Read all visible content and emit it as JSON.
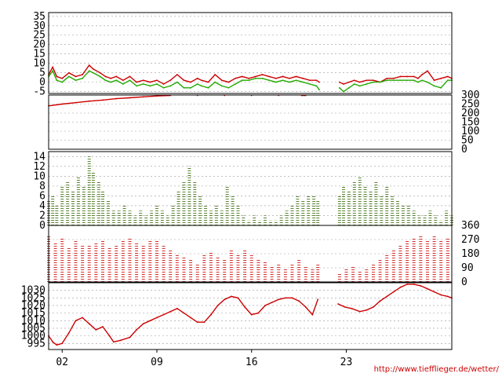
{
  "credit": "http://www.tiefflieger.de/wetter/",
  "colors": {
    "red": "#cc0000",
    "green": "#22aa00",
    "darkgreen": "#336600",
    "grid": "#999999",
    "axis": "#000000"
  },
  "chart_data": [
    {
      "type": "line",
      "ylim": [
        -6,
        37
      ],
      "yticks": [
        35,
        30,
        25,
        20,
        15,
        10,
        5,
        0,
        -5
      ],
      "xlim": [
        1,
        30.8
      ],
      "series": [
        {
          "color": "#cc0000",
          "x": [
            1,
            1.3,
            1.6,
            2,
            2.5,
            3,
            3.5,
            4,
            4.3,
            4.8,
            5.2,
            5.6,
            6,
            6.5,
            7,
            7.5,
            8,
            8.5,
            9,
            9.5,
            10,
            10.5,
            11,
            11.5,
            12,
            12.3,
            12.8,
            13.3,
            13.8,
            14.3,
            14.8,
            15.3,
            15.8,
            16.3,
            16.8,
            17.3,
            17.8,
            18.3,
            18.8,
            19.3,
            19.8,
            20.3,
            20.8,
            21,
            22.5,
            22.8,
            23.2,
            23.6,
            24,
            24.5,
            25,
            25.5,
            26,
            26.5,
            27,
            27.5,
            28,
            28.3,
            28.6,
            29,
            29.5,
            30,
            30.5,
            30.8
          ],
          "y": [
            4,
            8,
            3,
            2,
            5,
            3,
            4,
            9,
            7,
            5,
            3,
            2,
            3,
            1,
            3,
            0,
            1,
            0,
            1,
            -1,
            1,
            4,
            1,
            0,
            2,
            1,
            0,
            4,
            1,
            0,
            2,
            3,
            2,
            3,
            4,
            3,
            2,
            3,
            2,
            3,
            2,
            1,
            1,
            0,
            0,
            -1,
            0,
            1,
            0,
            1,
            1,
            0,
            2,
            2,
            3,
            3,
            3,
            2,
            4,
            6,
            1,
            2,
            3,
            2
          ]
        },
        {
          "color": "#22aa00",
          "x": [
            1,
            1.3,
            1.6,
            2,
            2.5,
            3,
            3.5,
            4,
            4.3,
            4.8,
            5.2,
            5.6,
            6,
            6.5,
            7,
            7.5,
            8,
            8.5,
            9,
            9.5,
            10,
            10.5,
            11,
            11.5,
            12,
            12.3,
            12.8,
            13.3,
            13.8,
            14.3,
            14.8,
            15.3,
            15.8,
            16.3,
            16.8,
            17.3,
            17.8,
            18.3,
            18.8,
            19.3,
            19.8,
            20.3,
            20.8,
            21,
            22.5,
            22.8,
            23.2,
            23.6,
            24,
            24.5,
            25,
            25.5,
            26,
            26.5,
            27,
            27.5,
            28,
            28.3,
            28.6,
            29,
            29.5,
            30,
            30.5,
            30.8
          ],
          "y": [
            3,
            6,
            1,
            0,
            3,
            1,
            2,
            6,
            5,
            3,
            1,
            0,
            1,
            -1,
            1,
            -2,
            -1,
            -2,
            -1,
            -3,
            -2,
            0,
            -3,
            -3,
            -1,
            -2,
            -3,
            0,
            -2,
            -3,
            -1,
            1,
            1,
            2,
            2,
            1,
            0,
            1,
            0,
            1,
            0,
            -1,
            -2,
            -4,
            -3,
            -5,
            -3,
            -1,
            -2,
            -1,
            0,
            0,
            1,
            1,
            1,
            1,
            1,
            0,
            1,
            0,
            -2,
            -3,
            1,
            1
          ]
        }
      ]
    },
    {
      "type": "line",
      "ylim": [
        0,
        300
      ],
      "yticks": [
        300,
        250,
        200,
        150,
        100,
        50,
        0
      ],
      "xlim": [
        1,
        30.8
      ],
      "series": [
        {
          "color": "#cc0000",
          "x": [
            1,
            2,
            3,
            4,
            5,
            6,
            7,
            8,
            9,
            10,
            12,
            14,
            16,
            18,
            19.7,
            20
          ],
          "y": [
            240,
            250,
            258,
            266,
            272,
            280,
            285,
            290,
            295,
            298,
            298,
            298,
            298,
            298,
            298,
            298
          ]
        }
      ]
    },
    {
      "type": "scatter",
      "ylim": [
        0,
        15
      ],
      "yticks": [
        14,
        12,
        10,
        8,
        6,
        4,
        2,
        0
      ],
      "xlim": [
        1,
        30.8
      ],
      "gaps": [
        [
          20.9,
          22.5
        ]
      ],
      "series": [
        {
          "color": "#336600",
          "x": [
            1,
            1.3,
            1.6,
            2,
            2.4,
            2.8,
            3.2,
            3.6,
            4,
            4.3,
            4.7,
            5,
            5.4,
            5.8,
            6.2,
            6.6,
            7,
            7.4,
            7.8,
            8.2,
            8.6,
            9,
            9.4,
            9.8,
            10.2,
            10.6,
            11,
            11.4,
            11.8,
            12.2,
            12.6,
            13,
            13.4,
            13.8,
            14.2,
            14.6,
            15,
            15.4,
            15.8,
            16.2,
            16.6,
            17,
            17.4,
            17.8,
            18.2,
            18.6,
            19,
            19.4,
            19.8,
            20.2,
            20.6,
            20.9,
            22.5,
            22.8,
            23.2,
            23.6,
            24,
            24.4,
            24.8,
            25.2,
            25.6,
            26,
            26.4,
            26.8,
            27.2,
            27.6,
            28,
            28.4,
            28.8,
            29.2,
            29.6,
            30,
            30.4,
            30.8
          ],
          "y": [
            5,
            6,
            4,
            8,
            9,
            7,
            10,
            8,
            14,
            11,
            9,
            7,
            5,
            3,
            3,
            4,
            3,
            2,
            3,
            2,
            3,
            4,
            3,
            2,
            4,
            7,
            9,
            12,
            9,
            6,
            4,
            3,
            4,
            3,
            8,
            6,
            4,
            2,
            1,
            2,
            1,
            2,
            1,
            1,
            2,
            3,
            4,
            6,
            5,
            6,
            6,
            5,
            6,
            8,
            7,
            9,
            10,
            8,
            7,
            9,
            6,
            8,
            6,
            5,
            4,
            4,
            3,
            2,
            2,
            3,
            2,
            1,
            3,
            2
          ]
        }
      ]
    },
    {
      "type": "scatter",
      "ylim": [
        0,
        360
      ],
      "yticks": [
        360,
        270,
        180,
        90,
        0
      ],
      "xlim": [
        1,
        30.8
      ],
      "gaps": [
        [
          20.9,
          22.5
        ]
      ],
      "series": [
        {
          "color": "#cc0000",
          "x": [
            1,
            1.5,
            2,
            2.5,
            3,
            3.5,
            4,
            4.5,
            5,
            5.5,
            6,
            6.5,
            7,
            7.5,
            8,
            8.5,
            9,
            9.5,
            10,
            10.5,
            11,
            11.5,
            12,
            12.5,
            13,
            13.5,
            14,
            14.5,
            15,
            15.5,
            16,
            16.5,
            17,
            17.5,
            18,
            18.5,
            19,
            19.5,
            20,
            20.5,
            20.9,
            22.5,
            23,
            23.5,
            24,
            24.5,
            25,
            25.5,
            26,
            26.5,
            27,
            27.5,
            28,
            28.5,
            29,
            29.5,
            30,
            30.5
          ],
          "y": [
            300,
            250,
            280,
            220,
            260,
            240,
            230,
            250,
            270,
            220,
            240,
            260,
            280,
            250,
            230,
            270,
            260,
            240,
            200,
            180,
            160,
            140,
            120,
            170,
            190,
            160,
            150,
            200,
            180,
            210,
            170,
            150,
            130,
            100,
            120,
            90,
            110,
            140,
            100,
            80,
            120,
            60,
            80,
            100,
            70,
            90,
            120,
            150,
            170,
            200,
            230,
            260,
            280,
            300,
            270,
            290,
            260,
            280
          ]
        }
      ]
    },
    {
      "type": "line",
      "ylim": [
        991,
        1035
      ],
      "yticks": [
        1030,
        1025,
        1020,
        1015,
        1010,
        1005,
        1000,
        995
      ],
      "xlim": [
        1,
        30.8
      ],
      "xticks": [
        {
          "x": 2,
          "label": "02"
        },
        {
          "x": 9,
          "label": "09"
        },
        {
          "x": 16,
          "label": "16"
        },
        {
          "x": 23,
          "label": "23"
        }
      ],
      "series": [
        {
          "color": "#cc0000",
          "x": [
            1,
            1.3,
            1.6,
            2,
            2.5,
            3,
            3.5,
            4,
            4.5,
            5,
            5.5,
            5.8,
            6.3,
            7,
            7.5,
            8,
            8.5,
            9,
            9.5,
            10,
            10.5,
            11,
            11.5,
            12,
            12.5,
            13,
            13.5,
            14,
            14.5,
            15,
            15.5,
            16,
            16.5,
            17,
            17.5,
            18,
            18.5,
            19,
            19.5,
            20,
            20.5,
            20.9,
            22.4,
            22.9,
            23.4,
            24,
            24.5,
            25,
            25.5,
            26,
            26.5,
            27,
            27.5,
            28,
            28.5,
            29,
            29.5,
            30,
            30.5,
            30.8
          ],
          "y": [
            1000,
            996,
            994,
            995,
            1002,
            1010,
            1012,
            1008,
            1004,
            1006,
            1000,
            996,
            997,
            999,
            1004,
            1008,
            1010,
            1012,
            1014,
            1016,
            1018,
            1015,
            1012,
            1009,
            1009,
            1014,
            1020,
            1024,
            1026,
            1025,
            1019,
            1014,
            1015,
            1020,
            1022,
            1024,
            1025,
            1025,
            1023,
            1019,
            1014,
            1024,
            1021,
            1019,
            1018,
            1016,
            1017,
            1019,
            1023,
            1026,
            1029,
            1032,
            1034,
            1034,
            1033,
            1031,
            1029,
            1027,
            1026,
            1025
          ]
        }
      ]
    }
  ]
}
